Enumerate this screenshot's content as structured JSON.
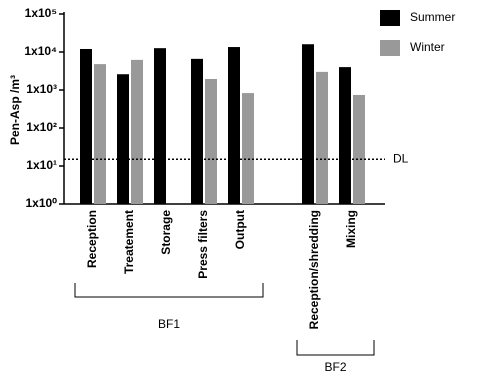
{
  "chart_data": {
    "type": "bar",
    "y_label": "Pen-Asp /m³",
    "log_scale": true,
    "ylim": [
      1,
      100000
    ],
    "yticks": [
      {
        "value": 1,
        "label": "1x10⁰"
      },
      {
        "value": 10,
        "label": "1x10¹"
      },
      {
        "value": 100,
        "label": "1x10²"
      },
      {
        "value": 1000,
        "label": "1x10³"
      },
      {
        "value": 10000,
        "label": "1x10⁴"
      },
      {
        "value": 100000,
        "label": "1x10⁵"
      }
    ],
    "groups": [
      {
        "name": "BF1",
        "categories": [
          "Reception",
          "Treatement",
          "Storage",
          "Press filters",
          "Output"
        ]
      },
      {
        "name": "BF2",
        "categories": [
          "Reception/shredding",
          "Mixing"
        ]
      }
    ],
    "series": [
      {
        "name": "Summer",
        "color": "#000000",
        "values": [
          12000,
          2600,
          12600,
          6600,
          13500,
          16000,
          4000
        ]
      },
      {
        "name": "Winter",
        "color": "#999999",
        "values": [
          4800,
          6200,
          null,
          1950,
          830,
          3000,
          740
        ]
      }
    ],
    "reference_line": {
      "value": 15,
      "label": "DL"
    },
    "legend": "top-right"
  }
}
